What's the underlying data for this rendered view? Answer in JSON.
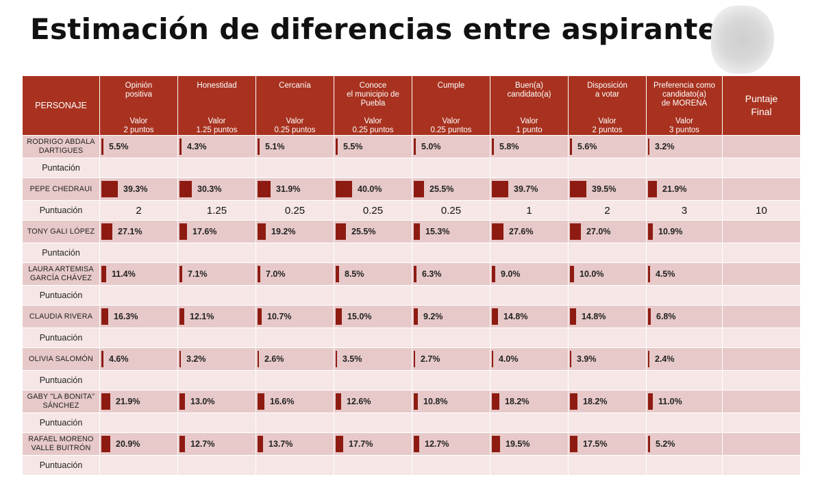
{
  "title": "Estimación de diferencias entre aspirantes",
  "header": {
    "personaje": "PERSONAJE",
    "final": [
      "Puntaje",
      "Final"
    ],
    "columns": [
      {
        "name": [
          "Opinión",
          "positiva"
        ],
        "valor": [
          "Valor",
          "2 puntos"
        ]
      },
      {
        "name": [
          "Honestidad"
        ],
        "valor": [
          "Valor",
          "1.25 puntos"
        ]
      },
      {
        "name": [
          "Cercanía"
        ],
        "valor": [
          "Valor",
          "0.25 puntos"
        ]
      },
      {
        "name": [
          "Conoce",
          "el municipio de",
          "Puebla"
        ],
        "valor": [
          "Valor",
          "0.25 puntos"
        ]
      },
      {
        "name": [
          "Cumple"
        ],
        "valor": [
          "Valor",
          "0.25 puntos"
        ]
      },
      {
        "name": [
          "Buen(a)",
          "candidato(a)"
        ],
        "valor": [
          "Valor",
          "1 punto"
        ]
      },
      {
        "name": [
          "Disposición",
          "a votar"
        ],
        "valor": [
          "Valor",
          "2 puntos"
        ]
      },
      {
        "name": [
          "Preferencia como",
          "candidato(a)",
          "de MORENA"
        ],
        "valor": [
          "Valor",
          "3 puntos"
        ]
      }
    ]
  },
  "rows": [
    {
      "name": [
        "RODRIGO ABDALA",
        "DARTIGUES"
      ],
      "values": [
        5.5,
        4.3,
        5.1,
        5.5,
        5.0,
        5.8,
        5.6,
        3.2
      ],
      "labels": [
        "5.5%",
        "4.3%",
        "5.1%",
        "5.5%",
        "5.0%",
        "5.8%",
        "5.6%",
        "3.2%"
      ],
      "score_label": "Puntación",
      "scores": [
        "",
        "",
        "",
        "",
        "",
        "",
        "",
        ""
      ],
      "final": ""
    },
    {
      "name": [
        "PEPE CHEDRAUI"
      ],
      "values": [
        39.3,
        30.3,
        31.9,
        40.0,
        25.5,
        39.7,
        39.5,
        21.9
      ],
      "labels": [
        "39.3%",
        "30.3%",
        "31.9%",
        "40.0%",
        "25.5%",
        "39.7%",
        "39.5%",
        "21.9%"
      ],
      "score_label": "Puntuación",
      "scores": [
        "2",
        "1.25",
        "0.25",
        "0.25",
        "0.25",
        "1",
        "2",
        "3"
      ],
      "final": "10"
    },
    {
      "name": [
        "TONY GALI LÓPEZ"
      ],
      "values": [
        27.1,
        17.6,
        19.2,
        25.5,
        15.3,
        27.6,
        27.0,
        10.9
      ],
      "labels": [
        "27.1%",
        "17.6%",
        "19.2%",
        "25.5%",
        "15.3%",
        "27.6%",
        "27.0%",
        "10.9%"
      ],
      "score_label": "Puntación",
      "scores": [
        "",
        "",
        "",
        "",
        "",
        "",
        "",
        ""
      ],
      "final": ""
    },
    {
      "name": [
        "LAURA ARTEMISA",
        "GARCÍA CHÁVEZ"
      ],
      "values": [
        11.4,
        7.1,
        7.0,
        8.5,
        6.3,
        9.0,
        10.0,
        4.5
      ],
      "labels": [
        "11.4%",
        "7.1%",
        "7.0%",
        "8.5%",
        "6.3%",
        "9.0%",
        "10.0%",
        "4.5%"
      ],
      "score_label": "Puntuación",
      "scores": [
        "",
        "",
        "",
        "",
        "",
        "",
        "",
        ""
      ],
      "final": ""
    },
    {
      "name": [
        "CLAUDIA RIVERA"
      ],
      "values": [
        16.3,
        12.1,
        10.7,
        15.0,
        9.2,
        14.8,
        14.8,
        6.8
      ],
      "labels": [
        "16.3%",
        "12.1%",
        "10.7%",
        "15.0%",
        "9.2%",
        "14.8%",
        "14.8%",
        "6.8%"
      ],
      "score_label": "Puntuación",
      "scores": [
        "",
        "",
        "",
        "",
        "",
        "",
        "",
        ""
      ],
      "final": ""
    },
    {
      "name": [
        "OLIVIA SALOMÓN"
      ],
      "values": [
        4.6,
        3.2,
        2.6,
        3.5,
        2.7,
        4.0,
        3.9,
        2.4
      ],
      "labels": [
        "4.6%",
        "3.2%",
        "2.6%",
        "3.5%",
        "2.7%",
        "4.0%",
        "3.9%",
        "2.4%"
      ],
      "score_label": "Puntuación",
      "scores": [
        "",
        "",
        "",
        "",
        "",
        "",
        "",
        ""
      ],
      "final": ""
    },
    {
      "name": [
        "GABY \"LA BONITA\"",
        "SÁNCHEZ"
      ],
      "values": [
        21.9,
        13.0,
        16.6,
        12.6,
        10.8,
        18.2,
        18.2,
        11.0
      ],
      "labels": [
        "21.9%",
        "13.0%",
        "16.6%",
        "12.6%",
        "10.8%",
        "18.2%",
        "18.2%",
        "11.0%"
      ],
      "score_label": "Puntuación",
      "scores": [
        "",
        "",
        "",
        "",
        "",
        "",
        "",
        ""
      ],
      "final": ""
    },
    {
      "name": [
        "RAFAEL MORENO",
        "VALLE BUITRÓN"
      ],
      "values": [
        20.9,
        12.7,
        13.7,
        17.7,
        12.7,
        19.5,
        17.5,
        5.2
      ],
      "labels": [
        "20.9%",
        "12.7%",
        "13.7%",
        "17.7%",
        "12.7%",
        "19.5%",
        "17.5%",
        "5.2%"
      ],
      "score_label": "Puntuación",
      "scores": [
        "",
        "",
        "",
        "",
        "",
        "",
        "",
        ""
      ],
      "final": ""
    }
  ]
}
